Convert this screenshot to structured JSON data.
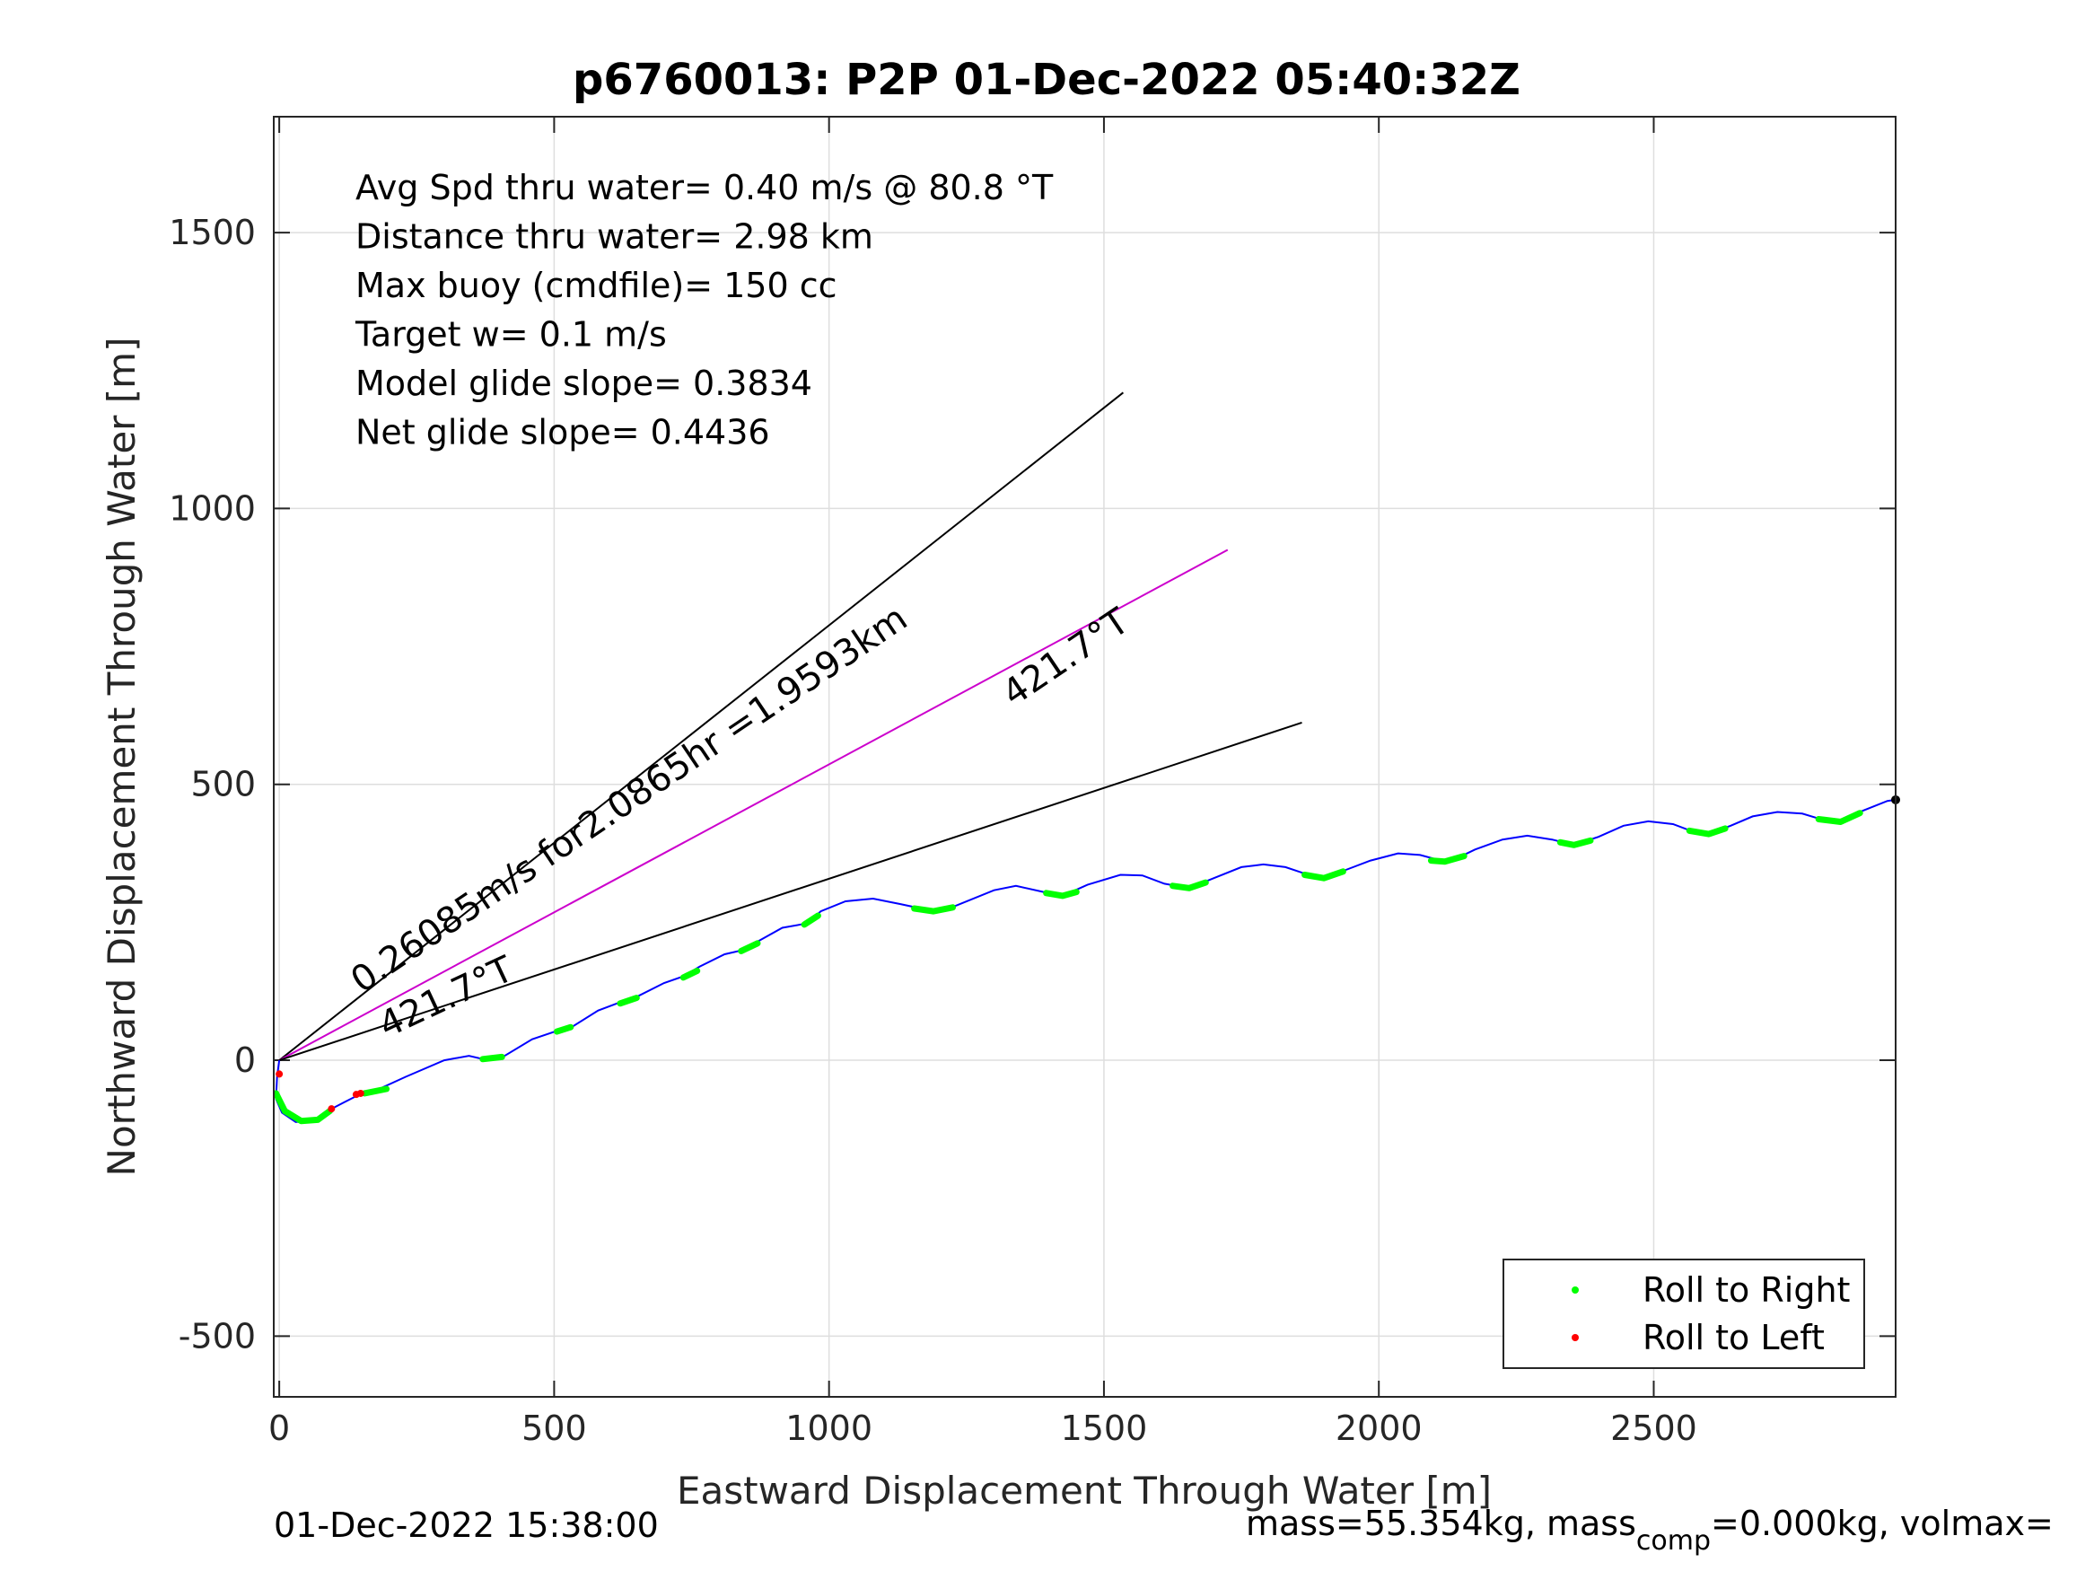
{
  "chart_data": {
    "type": "line",
    "title": "p6760013: P2P 01-Dec-2022 05:40:32Z",
    "xlabel": "Eastward Displacement Through Water [m]",
    "ylabel": "Northward Displacement Through Water [m]",
    "xlim": [
      -10,
      2940
    ],
    "ylim": [
      -610,
      1710
    ],
    "xticks": [
      0,
      500,
      1000,
      1500,
      2000,
      2500
    ],
    "yticks": [
      -500,
      0,
      500,
      1000,
      1500
    ],
    "xtick_labels": [
      "0",
      "500",
      "1000",
      "1500",
      "2000",
      "2500"
    ],
    "ytick_labels": [
      "-500",
      "0",
      "500",
      "1000",
      "1500"
    ],
    "grid": true,
    "info_text": [
      "Avg Spd thru water=  0.40 m/s @  80.8 °T",
      "Distance thru water=  2.98 km",
      "Max buoy (cmdfile)= 150 cc",
      "Target w= 0.1 m/s",
      "Model glide slope= 0.3834",
      "Net glide slope= 0.4436"
    ],
    "annotations": [
      {
        "text": "0.26085m/s for2.0865hr =1.9593km",
        "x": 150,
        "y": 120,
        "rotation_deg": 34
      },
      {
        "text": "421.7°T",
        "x": 195,
        "y": 40,
        "rotation_deg": 25
      },
      {
        "text": "421.7°T",
        "x": 1335,
        "y": 640,
        "rotation_deg": 34
      }
    ],
    "reference_lines": [
      {
        "name": "upper bound",
        "color": "#000000",
        "points": [
          [
            0,
            0
          ],
          [
            1535,
            1210
          ]
        ]
      },
      {
        "name": "heading",
        "color": "#cc00cc",
        "points": [
          [
            0,
            0
          ],
          [
            1725,
            925
          ]
        ]
      },
      {
        "name": "lower bound",
        "color": "#000000",
        "points": [
          [
            0,
            0
          ],
          [
            1860,
            612
          ]
        ]
      }
    ],
    "track": {
      "color": "#0000ff",
      "points": [
        [
          0,
          0
        ],
        [
          -4,
          -30
        ],
        [
          -6,
          -70
        ],
        [
          5,
          -95
        ],
        [
          30,
          -112
        ],
        [
          60,
          -110
        ],
        [
          95,
          -88
        ],
        [
          140,
          -65
        ],
        [
          175,
          -55
        ],
        [
          230,
          -30
        ],
        [
          300,
          0
        ],
        [
          345,
          8
        ],
        [
          380,
          0
        ],
        [
          410,
          8
        ],
        [
          460,
          38
        ],
        [
          510,
          55
        ],
        [
          535,
          62
        ],
        [
          580,
          90
        ],
        [
          620,
          105
        ],
        [
          650,
          115
        ],
        [
          700,
          140
        ],
        [
          735,
          152
        ],
        [
          765,
          170
        ],
        [
          810,
          192
        ],
        [
          845,
          200
        ],
        [
          870,
          215
        ],
        [
          915,
          240
        ],
        [
          960,
          248
        ],
        [
          985,
          270
        ],
        [
          1030,
          288
        ],
        [
          1080,
          293
        ],
        [
          1130,
          283
        ],
        [
          1190,
          270
        ],
        [
          1230,
          280
        ],
        [
          1300,
          308
        ],
        [
          1340,
          316
        ],
        [
          1390,
          305
        ],
        [
          1425,
          298
        ],
        [
          1470,
          318
        ],
        [
          1530,
          336
        ],
        [
          1570,
          335
        ],
        [
          1610,
          320
        ],
        [
          1655,
          312
        ],
        [
          1700,
          330
        ],
        [
          1750,
          350
        ],
        [
          1790,
          355
        ],
        [
          1830,
          350
        ],
        [
          1860,
          340
        ],
        [
          1900,
          330
        ],
        [
          1940,
          345
        ],
        [
          1985,
          362
        ],
        [
          2035,
          375
        ],
        [
          2075,
          372
        ],
        [
          2120,
          360
        ],
        [
          2140,
          365
        ],
        [
          2175,
          382
        ],
        [
          2225,
          400
        ],
        [
          2270,
          407
        ],
        [
          2315,
          400
        ],
        [
          2355,
          390
        ],
        [
          2400,
          405
        ],
        [
          2445,
          425
        ],
        [
          2490,
          433
        ],
        [
          2535,
          428
        ],
        [
          2570,
          415
        ],
        [
          2600,
          410
        ],
        [
          2640,
          425
        ],
        [
          2680,
          442
        ],
        [
          2725,
          450
        ],
        [
          2770,
          447
        ],
        [
          2810,
          435
        ],
        [
          2840,
          432
        ],
        [
          2880,
          452
        ],
        [
          2925,
          470
        ],
        [
          2940,
          472
        ]
      ]
    },
    "roll_to_right_segments": [
      [
        [
          -6,
          -60
        ],
        [
          10,
          -92
        ],
        [
          40,
          -110
        ],
        [
          70,
          -108
        ],
        [
          92,
          -92
        ]
      ],
      [
        [
          155,
          -60
        ],
        [
          195,
          -52
        ]
      ],
      [
        [
          370,
          2
        ],
        [
          405,
          6
        ]
      ],
      [
        [
          505,
          52
        ],
        [
          530,
          60
        ]
      ],
      [
        [
          620,
          103
        ],
        [
          650,
          113
        ]
      ],
      [
        [
          735,
          150
        ],
        [
          760,
          162
        ]
      ],
      [
        [
          840,
          198
        ],
        [
          870,
          212
        ]
      ],
      [
        [
          955,
          246
        ],
        [
          980,
          262
        ]
      ],
      [
        [
          1155,
          275
        ],
        [
          1190,
          270
        ],
        [
          1225,
          277
        ]
      ],
      [
        [
          1395,
          303
        ],
        [
          1425,
          298
        ],
        [
          1450,
          305
        ]
      ],
      [
        [
          1625,
          316
        ],
        [
          1655,
          312
        ],
        [
          1685,
          322
        ]
      ],
      [
        [
          1865,
          336
        ],
        [
          1900,
          330
        ],
        [
          1935,
          342
        ]
      ],
      [
        [
          2095,
          362
        ],
        [
          2120,
          360
        ],
        [
          2155,
          370
        ]
      ],
      [
        [
          2330,
          395
        ],
        [
          2355,
          390
        ],
        [
          2385,
          398
        ]
      ],
      [
        [
          2565,
          416
        ],
        [
          2600,
          410
        ],
        [
          2630,
          420
        ]
      ],
      [
        [
          2800,
          437
        ],
        [
          2840,
          432
        ],
        [
          2875,
          448
        ]
      ]
    ],
    "roll_to_left_points": [
      [
        0,
        -25
      ],
      [
        95,
        -88
      ],
      [
        140,
        -62
      ],
      [
        148,
        -60
      ]
    ],
    "endpoint": [
      2940,
      472
    ],
    "legend": {
      "position": "bottom-right",
      "entries": [
        {
          "label": "Roll to Right",
          "color": "#00ff00"
        },
        {
          "label": "Roll to Left",
          "color": "#ff0000"
        }
      ]
    },
    "footer_left": "01-Dec-2022 15:38:00",
    "footer_right_prefix": "mass=55.354kg, mass",
    "footer_right_subscript": "comp",
    "footer_right_suffix": "=0.000kg, volmax="
  }
}
